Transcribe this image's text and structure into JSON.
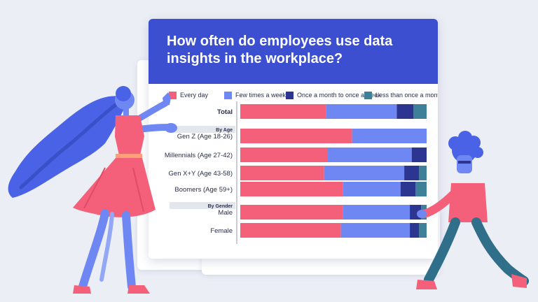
{
  "title": "How often do employees use data insights in the workplace?",
  "colors": {
    "background": "#eceef6",
    "header": "#3b4fd0",
    "every_day": "#f4607a",
    "few_times_week": "#6f87f2",
    "once_month_week": "#2c3590",
    "less_than_month": "#3f8099"
  },
  "chart_data": {
    "type": "bar",
    "orientation": "horizontal",
    "stacked": true,
    "normalized": true,
    "title": "How often do employees use data insights in the workplace?",
    "legend_position": "top",
    "grid": false,
    "xlim": [
      0,
      100
    ],
    "categories": [
      "Total",
      "Gen Z (Age 18-26)",
      "Millennials (Age 27-42)",
      "Gen X+Y (Age 43-58)",
      "Boomers (Age 59+)",
      "Male",
      "Female"
    ],
    "group_headers": [
      {
        "label": "By Age",
        "before_category": 1
      },
      {
        "label": "By Gender",
        "before_category": 5
      }
    ],
    "series": [
      {
        "name": "Every day",
        "color": "#f4607a",
        "values": [
          46,
          60,
          47,
          45,
          55,
          55,
          54
        ]
      },
      {
        "name": "Few times a week",
        "color": "#6f87f2",
        "values": [
          38,
          40,
          45,
          43,
          31,
          36,
          37
        ]
      },
      {
        "name": "Once a month to once a week",
        "color": "#2c3590",
        "values": [
          9,
          0,
          8,
          8,
          8,
          6,
          5
        ]
      },
      {
        "name": "Less than once a month",
        "color": "#3f8099",
        "values": [
          7,
          0,
          0,
          4,
          6,
          3,
          4
        ]
      }
    ]
  }
}
